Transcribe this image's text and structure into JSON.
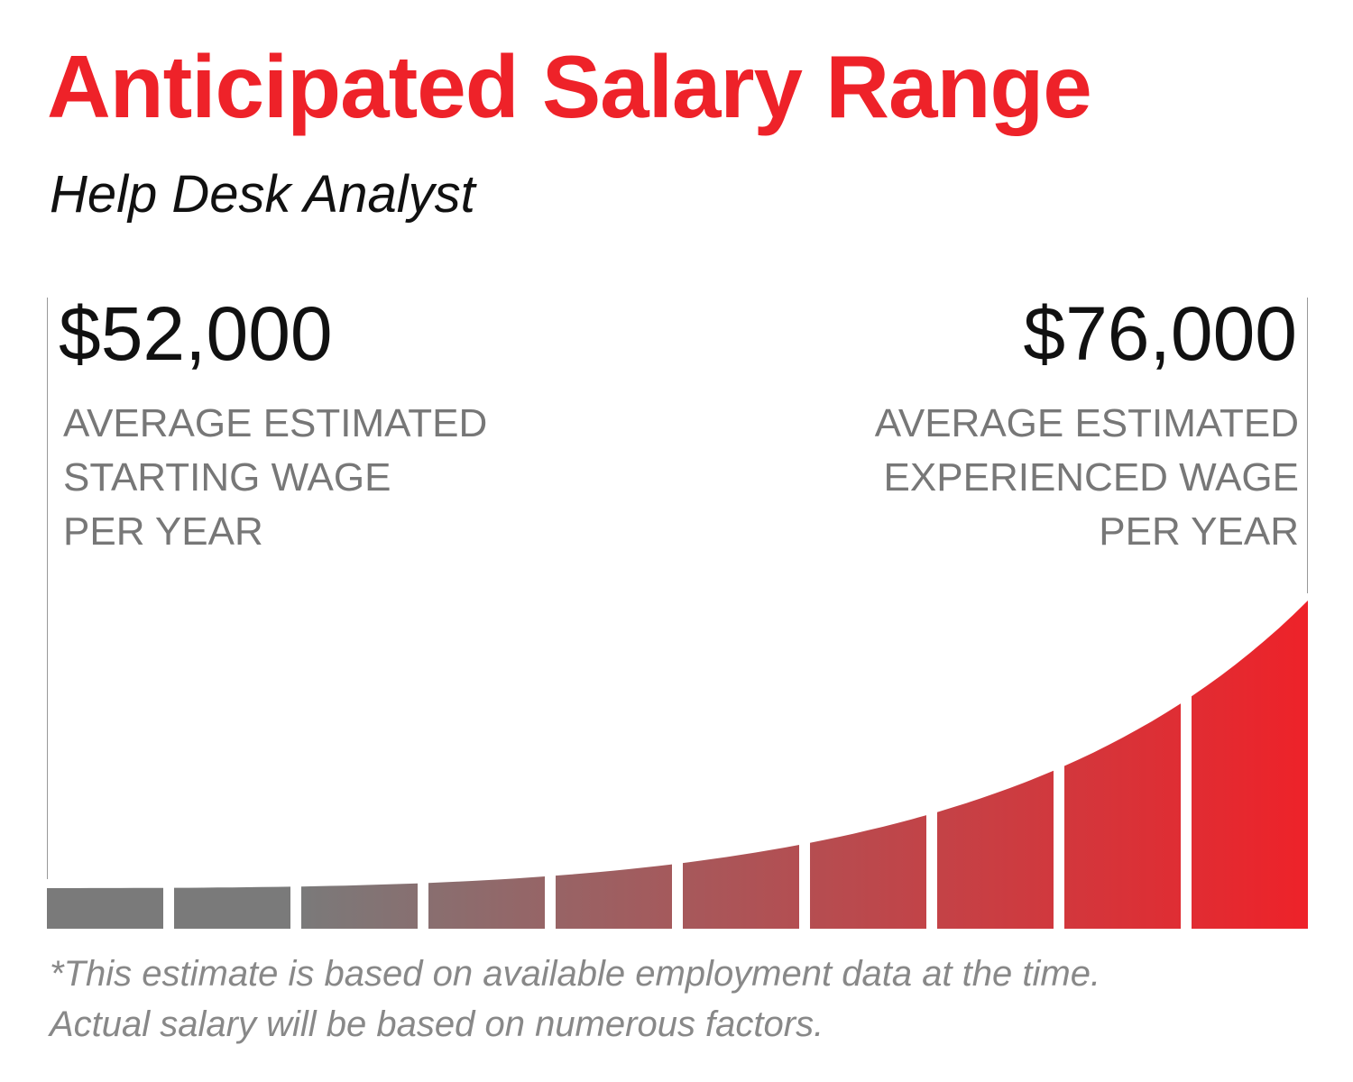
{
  "title": "Anticipated Salary Range",
  "subtitle": "Help Desk Analyst",
  "start": {
    "amount": "$52,000",
    "label_lines": [
      "AVERAGE ESTIMATED",
      "STARTING WAGE",
      "PER YEAR"
    ]
  },
  "experienced": {
    "amount": "$76,000",
    "label_lines": [
      "AVERAGE ESTIMATED",
      "EXPERIENCED WAGE",
      "PER YEAR"
    ]
  },
  "footnote_lines": [
    "*This estimate is based on available employment data at the time.",
    "Actual salary will be based on numerous factors."
  ],
  "colors": {
    "title": "#ee2229",
    "bar_start": "#7a7a7a",
    "bar_end": "#ee2229",
    "label": "#777777"
  },
  "decorative_bar_count": 10
}
